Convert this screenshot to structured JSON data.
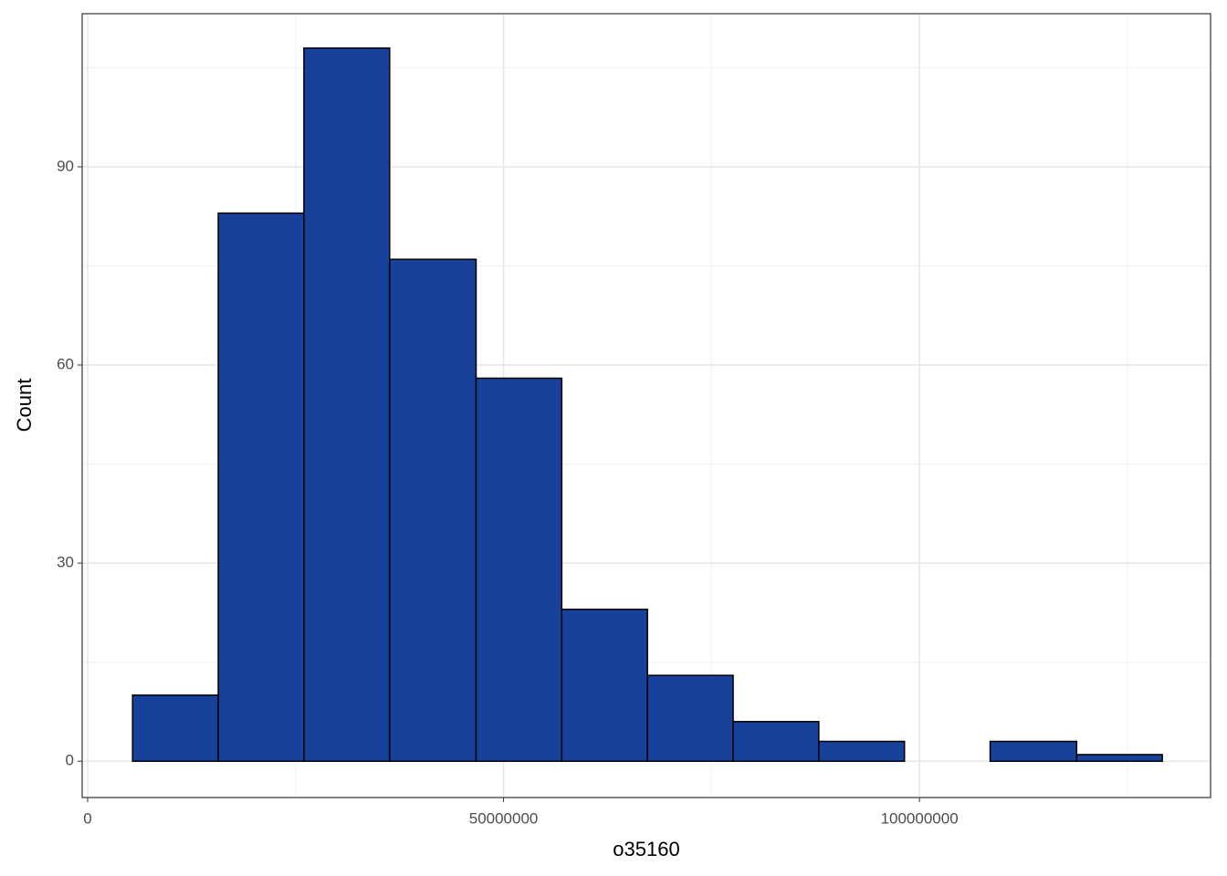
{
  "chart_data": {
    "type": "histogram",
    "x_label": "o35160",
    "y_label": "Count",
    "bins": [
      5400000,
      15700000,
      26000000,
      36300000,
      46700000,
      57000000,
      67300000,
      77600000,
      87900000,
      98200000,
      108500000,
      118900000,
      129200000
    ],
    "values": [
      10,
      83,
      108,
      76,
      58,
      23,
      13,
      6,
      3,
      0,
      3,
      1
    ],
    "color": "#17419a",
    "edge_color": "#000000",
    "xlim": [
      -660000,
      135000000
    ],
    "ylim": [
      -5.5,
      113.2
    ],
    "xticks": [
      0,
      50000000,
      100000000
    ],
    "yticks": [
      0,
      30,
      60,
      90
    ],
    "x_minor_ticks": [
      25000000,
      75000000,
      125000000
    ],
    "y_minor_ticks": [
      15,
      45,
      75,
      105
    ],
    "grid": true
  }
}
